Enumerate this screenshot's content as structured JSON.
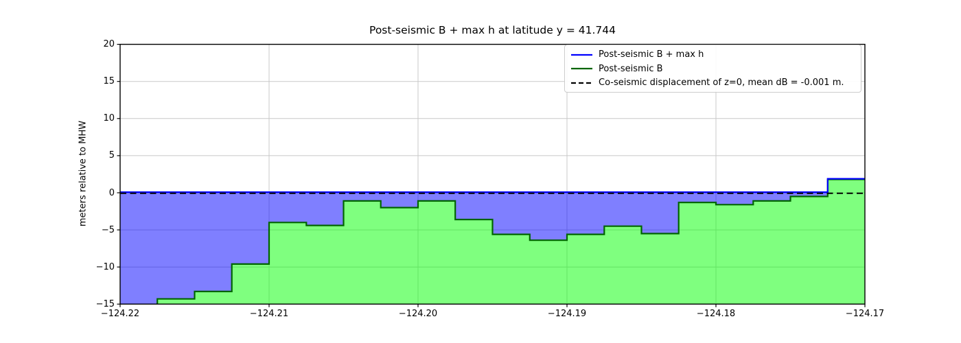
{
  "chart_data": {
    "type": "area",
    "title": "Post-seismic B + max h at latitude y = 41.744",
    "xlabel": "",
    "ylabel": "meters relative to MHW",
    "xlim": [
      -124.22,
      -124.17
    ],
    "ylim": [
      -15,
      20
    ],
    "grid": true,
    "x_ticks": [
      -124.22,
      -124.21,
      -124.2,
      -124.19,
      -124.18,
      -124.17
    ],
    "x_tick_labels": [
      "−124.22",
      "−124.21",
      "−124.20",
      "−124.19",
      "−124.18",
      "−124.17"
    ],
    "y_ticks": [
      20,
      15,
      10,
      5,
      0,
      -5,
      -10,
      -15
    ],
    "y_tick_labels": [
      "20",
      "15",
      "10",
      "5",
      "0",
      "−5",
      "−10",
      "−15"
    ],
    "step_edges_longitude": [
      -124.22,
      -124.2175,
      -124.215,
      -124.2125,
      -124.21,
      -124.2075,
      -124.205,
      -124.2025,
      -124.2,
      -124.1975,
      -124.195,
      -124.1925,
      -124.19,
      -124.1875,
      -124.185,
      -124.1825,
      -124.18,
      -124.1775,
      -124.175,
      -124.1725,
      -124.17
    ],
    "series": [
      {
        "name": "Post-seismic B + max h",
        "render": "step-line",
        "line_color": "#0000ff",
        "fill_color": "rgba(0,0,255,0.5)",
        "values": [
          0,
          0,
          0,
          0,
          0,
          0,
          0,
          0,
          0,
          0,
          0,
          0,
          0,
          0,
          0,
          0,
          0,
          0,
          0,
          1.8
        ]
      },
      {
        "name": "Post-seismic B",
        "render": "step-area",
        "line_color": "#006400",
        "fill_color": "rgba(0,255,0,0.5)",
        "values": [
          -15.8,
          -14.3,
          -13.3,
          -9.6,
          -4.0,
          -4.4,
          -1.1,
          -2.0,
          -1.1,
          -3.6,
          -5.6,
          -6.4,
          -5.6,
          -4.5,
          -5.5,
          -1.3,
          -1.6,
          -1.1,
          -0.5,
          1.8
        ]
      }
    ],
    "reference_line": {
      "y": -0.001,
      "style": "dashed",
      "color": "#000000",
      "label": "Co-seismic displacement of z=0, mean dB = -0.001 m."
    },
    "legend": {
      "position": "upper right",
      "items": [
        {
          "label": "Post-seismic B + max h",
          "color": "#0000ff",
          "style": "solid"
        },
        {
          "label": "Post-seismic B",
          "color": "#006400",
          "style": "solid"
        },
        {
          "label": "Co-seismic displacement of z=0, mean dB = -0.001 m.",
          "color": "#000000",
          "style": "dashed"
        }
      ]
    },
    "grid_color": "#c8c8c8",
    "spine_color": "#000000"
  }
}
